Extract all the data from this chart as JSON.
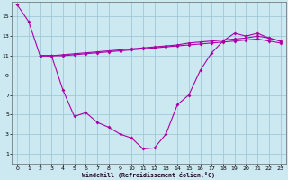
{
  "xlabel": "Windchill (Refroidissement éolien,°C)",
  "bg_color": "#cce8f0",
  "grid_color": "#a0c8d8",
  "line_color": "#aa00aa",
  "xlim": [
    -0.5,
    23.5
  ],
  "ylim": [
    0,
    16.5
  ],
  "xticks": [
    0,
    1,
    2,
    3,
    4,
    5,
    6,
    7,
    8,
    9,
    10,
    11,
    12,
    13,
    14,
    15,
    16,
    17,
    18,
    19,
    20,
    21,
    22,
    23
  ],
  "yticks": [
    1,
    3,
    5,
    7,
    9,
    11,
    13,
    15
  ],
  "series1_x": [
    0,
    1,
    2,
    3,
    4,
    5,
    6,
    7,
    8,
    9,
    10,
    11,
    12,
    13,
    14,
    15,
    16,
    17,
    18,
    19,
    20,
    21,
    22,
    23
  ],
  "series1_y": [
    16.2,
    14.5,
    11.0,
    11.0,
    7.5,
    4.8,
    5.2,
    4.2,
    3.7,
    3.0,
    2.6,
    1.5,
    1.6,
    3.0,
    6.0,
    7.0,
    9.5,
    11.3,
    12.5,
    13.3,
    13.0,
    13.3,
    12.8,
    12.5
  ],
  "series2_x": [
    2,
    3,
    4,
    5,
    6,
    7,
    8,
    9,
    10,
    11,
    12,
    13,
    14,
    15,
    16,
    17,
    18,
    19,
    20,
    21,
    22,
    23
  ],
  "series2_y": [
    11.0,
    11.0,
    11.1,
    11.2,
    11.3,
    11.4,
    11.5,
    11.6,
    11.7,
    11.8,
    11.9,
    12.0,
    12.1,
    12.3,
    12.4,
    12.5,
    12.6,
    12.7,
    12.8,
    13.0,
    12.8,
    12.5
  ],
  "series3_x": [
    2,
    3,
    4,
    5,
    6,
    7,
    8,
    9,
    10,
    11,
    12,
    13,
    14,
    15,
    16,
    17,
    18,
    19,
    20,
    21,
    22,
    23
  ],
  "series3_y": [
    11.0,
    11.0,
    11.0,
    11.1,
    11.2,
    11.3,
    11.4,
    11.5,
    11.6,
    11.7,
    11.8,
    11.9,
    12.0,
    12.1,
    12.2,
    12.3,
    12.4,
    12.5,
    12.6,
    12.7,
    12.5,
    12.3
  ]
}
